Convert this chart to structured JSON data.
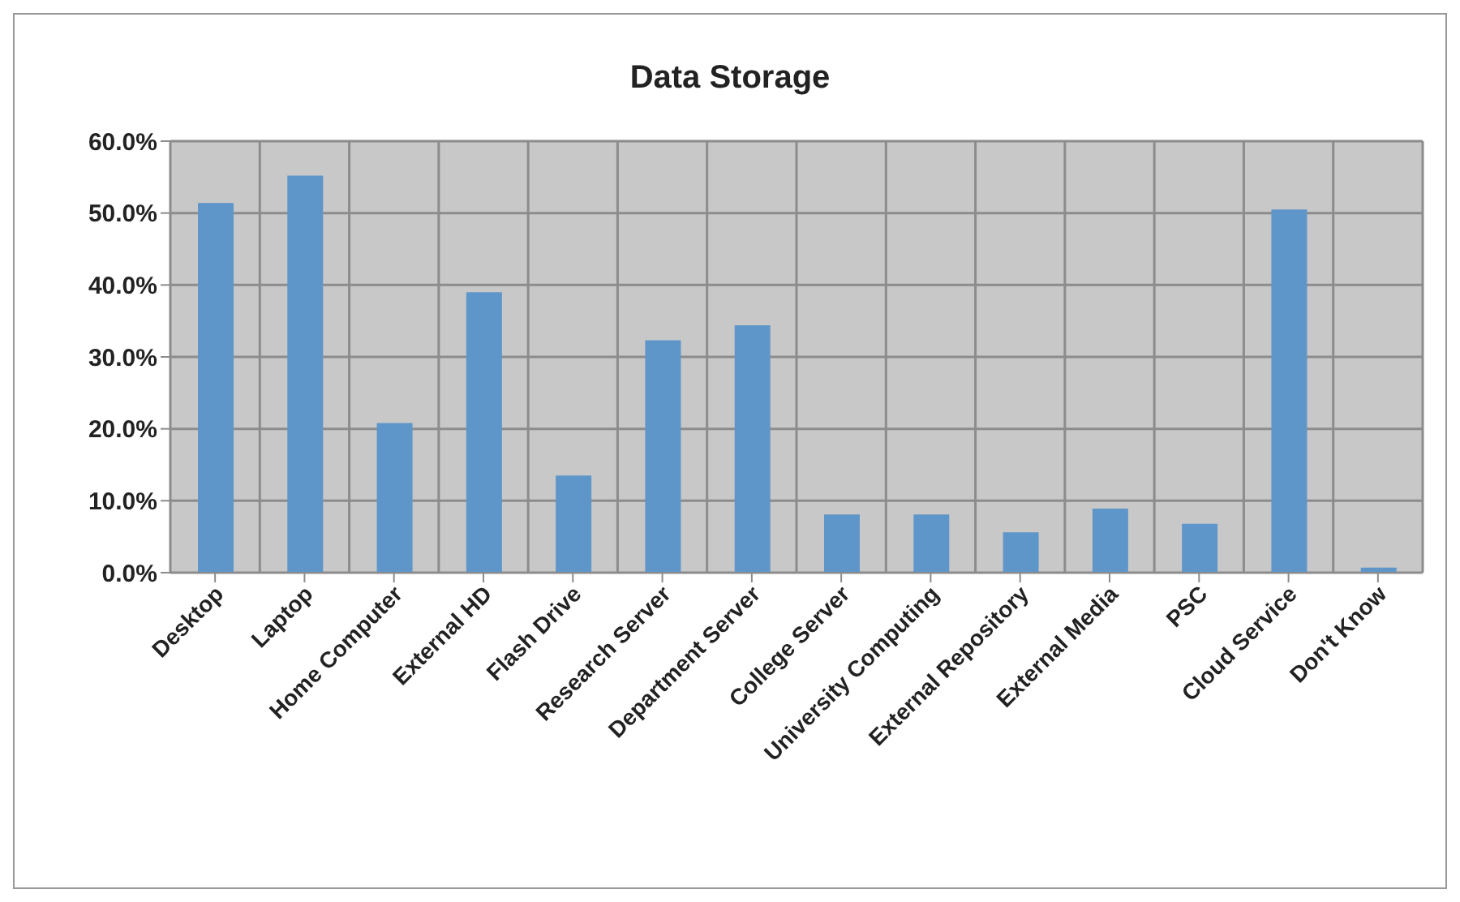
{
  "chart_data": {
    "type": "bar",
    "title": "Data Storage",
    "categories": [
      "Desktop",
      "Laptop",
      "Home Computer",
      "External HD",
      "Flash Drive",
      "Research Server",
      "Department Server",
      "College Server",
      "University Computing",
      "External Repository",
      "External Media",
      "PSC",
      "Cloud Service",
      "Don't Know"
    ],
    "values": [
      51.4,
      55.2,
      20.8,
      39.0,
      13.5,
      32.3,
      34.4,
      8.1,
      8.1,
      5.6,
      8.9,
      6.8,
      50.5,
      0.7
    ],
    "color": "#5f96c9",
    "ylim": [
      0,
      60
    ],
    "yticks": [
      {
        "value": 0,
        "label": "0.0%"
      },
      {
        "value": 10,
        "label": "10.0%"
      },
      {
        "value": 20,
        "label": "20.0%"
      },
      {
        "value": 30,
        "label": "30.0%"
      },
      {
        "value": 40,
        "label": "40.0%"
      },
      {
        "value": 50,
        "label": "50.0%"
      },
      {
        "value": 60,
        "label": "60.0%"
      }
    ],
    "grid": true,
    "legend": false
  }
}
